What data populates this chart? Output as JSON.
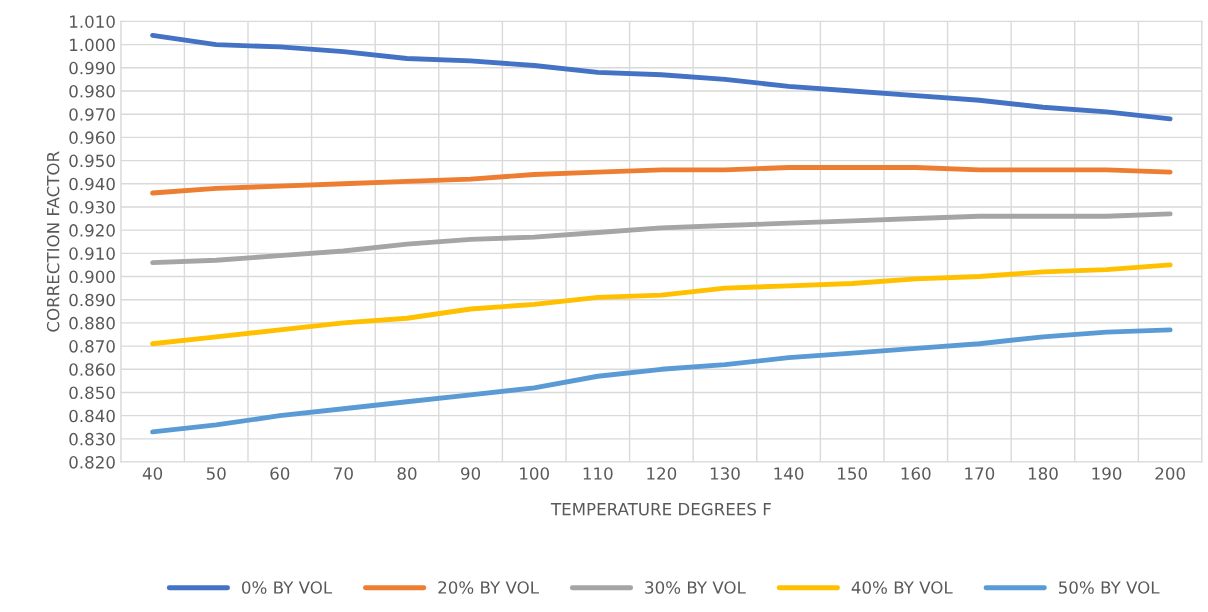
{
  "chart_data": {
    "type": "line",
    "xlabel": "TEMPERATURE DEGREES F",
    "ylabel": "CORRECTION FACTOR",
    "categories": [
      "40",
      "50",
      "60",
      "70",
      "80",
      "90",
      "100",
      "110",
      "120",
      "130",
      "140",
      "150",
      "160",
      "170",
      "180",
      "190",
      "200"
    ],
    "series": [
      {
        "name": "0% BY VOL",
        "color": "#4472c4",
        "values": [
          1.004,
          1.0,
          0.999,
          0.997,
          0.994,
          0.993,
          0.991,
          0.988,
          0.987,
          0.985,
          0.982,
          0.98,
          0.978,
          0.976,
          0.973,
          0.971,
          0.968
        ]
      },
      {
        "name": "20% BY VOL",
        "color": "#ed7d31",
        "values": [
          0.936,
          0.938,
          0.939,
          0.94,
          0.941,
          0.942,
          0.944,
          0.945,
          0.946,
          0.946,
          0.947,
          0.947,
          0.947,
          0.946,
          0.946,
          0.946,
          0.945
        ]
      },
      {
        "name": "30% BY VOL",
        "color": "#a5a5a5",
        "values": [
          0.906,
          0.907,
          0.909,
          0.911,
          0.914,
          0.916,
          0.917,
          0.919,
          0.921,
          0.922,
          0.923,
          0.924,
          0.925,
          0.926,
          0.926,
          0.926,
          0.927
        ]
      },
      {
        "name": "40% BY VOL",
        "color": "#ffc000",
        "values": [
          0.871,
          0.874,
          0.877,
          0.88,
          0.882,
          0.886,
          0.888,
          0.891,
          0.892,
          0.895,
          0.896,
          0.897,
          0.899,
          0.9,
          0.902,
          0.903,
          0.905
        ]
      },
      {
        "name": "50% BY VOL",
        "color": "#5b9bd5",
        "values": [
          0.833,
          0.836,
          0.84,
          0.843,
          0.846,
          0.849,
          0.852,
          0.857,
          0.86,
          0.862,
          0.865,
          0.867,
          0.869,
          0.871,
          0.874,
          0.876,
          0.877
        ]
      }
    ],
    "ylim": [
      0.82,
      1.01
    ],
    "yticks": [
      {
        "value": 0.82,
        "label": "0.820"
      },
      {
        "value": 0.83,
        "label": "0.830"
      },
      {
        "value": 0.84,
        "label": "0.840"
      },
      {
        "value": 0.85,
        "label": "0.850"
      },
      {
        "value": 0.86,
        "label": "0.860"
      },
      {
        "value": 0.87,
        "label": "0.870"
      },
      {
        "value": 0.88,
        "label": "0.880"
      },
      {
        "value": 0.89,
        "label": "0.890"
      },
      {
        "value": 0.9,
        "label": "0.900"
      },
      {
        "value": 0.91,
        "label": "0.910"
      },
      {
        "value": 0.92,
        "label": "0.920"
      },
      {
        "value": 0.93,
        "label": "0.930"
      },
      {
        "value": 0.94,
        "label": "0.940"
      },
      {
        "value": 0.95,
        "label": "0.950"
      },
      {
        "value": 0.96,
        "label": "0.960"
      },
      {
        "value": 0.97,
        "label": "0.970"
      },
      {
        "value": 0.98,
        "label": "0.980"
      },
      {
        "value": 0.99,
        "label": "0.990"
      },
      {
        "value": 1.0,
        "label": "1.000"
      },
      {
        "value": 1.01,
        "label": "1.010"
      }
    ],
    "grid": true,
    "legend": "bottom",
    "marker": "none",
    "line_style": "solid"
  }
}
